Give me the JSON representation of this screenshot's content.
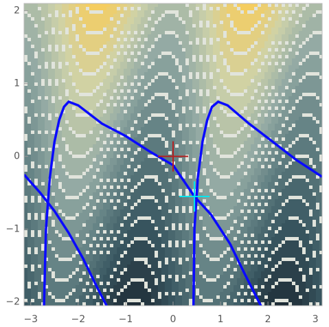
{
  "chart_data": {
    "type": "contour",
    "xlim": [
      -3.14159,
      3.14159
    ],
    "ylim": [
      -2.05,
      2.1
    ],
    "xticks": [
      {
        "value": -3,
        "label": "−3"
      },
      {
        "value": -2,
        "label": "−2"
      },
      {
        "value": -1,
        "label": "−1"
      },
      0,
      1,
      2,
      3
    ],
    "yticks": [
      {
        "value": -2,
        "label": "−2"
      },
      {
        "value": -1,
        "label": "−1"
      },
      0,
      1,
      2
    ],
    "series": [
      {
        "color": "#0a0aff",
        "x": [
          -3.14,
          -2.8,
          -2.5,
          -2.2,
          -1.9,
          -1.6,
          -1.4
        ],
        "values": [
          -0.25,
          -0.5,
          -0.75,
          -1.05,
          -1.4,
          -1.8,
          -2.05
        ]
      },
      {
        "color": "#0a0aff",
        "x": [
          -2.72,
          -2.68,
          -2.6,
          -2.5,
          -2.4,
          -2.3,
          -2.2,
          -2.0,
          -1.5,
          -1.0,
          -0.5,
          0,
          0.45,
          0.8,
          1.2,
          1.5,
          1.85
        ],
        "values": [
          -2.05,
          -1.0,
          -0.3,
          0.2,
          0.5,
          0.68,
          0.75,
          0.7,
          0.45,
          0.28,
          0.07,
          -0.12,
          -0.55,
          -0.8,
          -1.2,
          -1.6,
          -2.05
        ]
      },
      {
        "color": "#0a0aff",
        "x": [
          0.43,
          0.45,
          0.52,
          0.62,
          0.72,
          0.82,
          0.95,
          1.15,
          1.6,
          2.1,
          2.6,
          3.14
        ],
        "values": [
          -2.05,
          -1.0,
          -0.3,
          0.2,
          0.5,
          0.68,
          0.75,
          0.7,
          0.45,
          0.2,
          -0.05,
          -0.28
        ]
      }
    ],
    "markers": [
      {
        "x": 0,
        "y": 0,
        "color": "#b22222"
      },
      {
        "x": 0.45,
        "y": -0.55,
        "color": "#00e5ee"
      }
    ]
  }
}
